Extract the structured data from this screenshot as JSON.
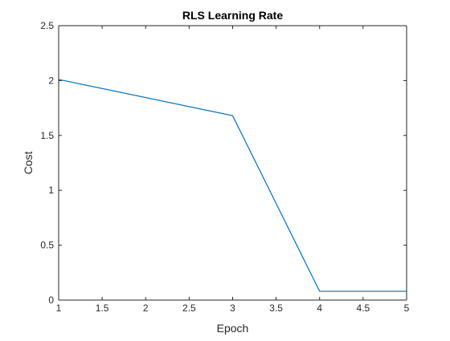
{
  "chart_data": {
    "type": "line",
    "title": "RLS Learning Rate",
    "xlabel": "Epoch",
    "ylabel": "Cost",
    "xlim": [
      1,
      5
    ],
    "ylim": [
      0,
      2.5
    ],
    "xticks": [
      1,
      1.5,
      2,
      2.5,
      3,
      3.5,
      4,
      4.5,
      5
    ],
    "xtick_labels": [
      "1",
      "1.5",
      "2",
      "2.5",
      "3",
      "3.5",
      "4",
      "4.5",
      "5"
    ],
    "yticks": [
      0,
      0.5,
      1,
      1.5,
      2,
      2.5
    ],
    "ytick_labels": [
      "0",
      "0.5",
      "1",
      "1.5",
      "2",
      "2.5"
    ],
    "grid": false,
    "legend": "none",
    "series": [
      {
        "x": [
          1,
          3,
          4,
          5
        ],
        "y": [
          2.01,
          1.68,
          0.08,
          0.08
        ],
        "color": "#0072BD"
      }
    ]
  }
}
